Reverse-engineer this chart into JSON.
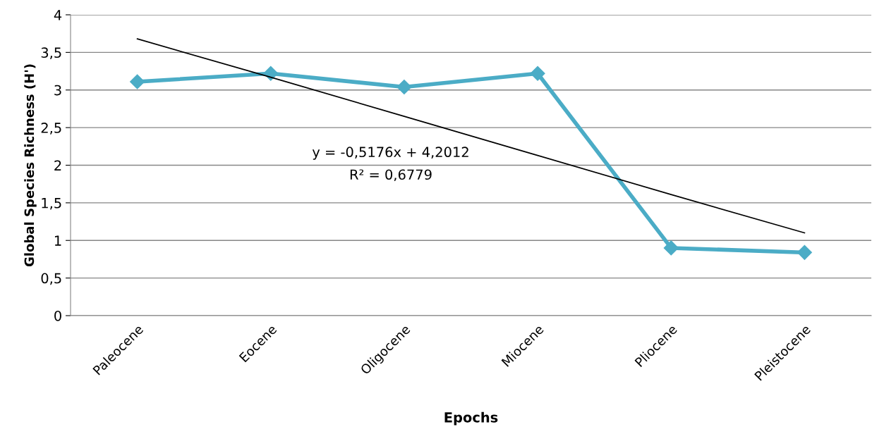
{
  "chart_data": {
    "type": "line",
    "xlabel": "Epochs",
    "ylabel": "Global Species Richness (H')",
    "categories": [
      "Paleocene",
      "Eocene",
      "Oligocene",
      "Miocene",
      "Pliocene",
      "Pleistocene"
    ],
    "series": [
      {
        "color": "#4bacc6",
        "values": [
          3.11,
          3.22,
          3.04,
          3.22,
          0.9,
          0.84
        ],
        "marker": "diamond"
      },
      {
        "type": "line",
        "color": "#000000",
        "values": [
          3.68,
          3.17,
          2.65,
          2.13,
          1.61,
          1.1
        ],
        "marker": "none"
      }
    ],
    "ylim": [
      0,
      4
    ],
    "yticks": [
      0,
      {
        "value": 0.5,
        "label": "0,5"
      },
      1,
      {
        "value": 1.5,
        "label": "1,5"
      },
      2,
      {
        "value": 2.5,
        "label": "2,5"
      },
      3,
      {
        "value": 3.5,
        "label": "3,5"
      },
      4
    ],
    "grid": "y",
    "legend": false,
    "annotations": [
      "y = -0,5176x + 4,2012",
      "R² = 0,6779"
    ]
  }
}
